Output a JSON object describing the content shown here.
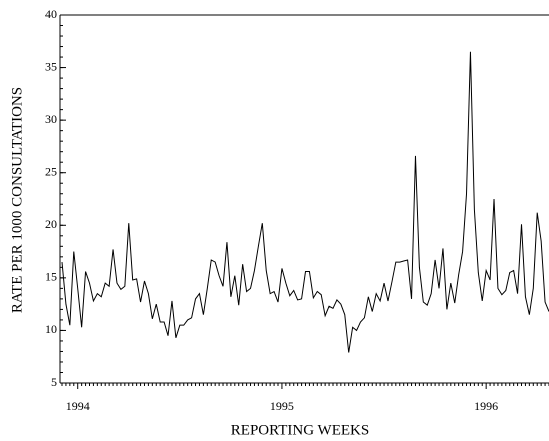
{
  "chart_data": {
    "type": "line",
    "xlabel": "REPORTING WEEKS",
    "ylabel": "RATE PER 1000 CONSULTATIONS",
    "categories": [
      null,
      null,
      null,
      null,
      "1994",
      null,
      null,
      null,
      null,
      null,
      null,
      null,
      null,
      null,
      null,
      null,
      null,
      null,
      null,
      null,
      null,
      null,
      null,
      null,
      null,
      null,
      null,
      null,
      null,
      null,
      null,
      null,
      null,
      null,
      null,
      null,
      null,
      null,
      null,
      null,
      null,
      null,
      null,
      null,
      null,
      null,
      null,
      null,
      null,
      null,
      null,
      null,
      null,
      null,
      null,
      null,
      "1995",
      null,
      null,
      null,
      null,
      null,
      null,
      null,
      null,
      null,
      null,
      null,
      null,
      null,
      null,
      null,
      null,
      null,
      null,
      null,
      null,
      null,
      null,
      null,
      null,
      null,
      null,
      null,
      null,
      null,
      null,
      null,
      null,
      null,
      null,
      null,
      null,
      null,
      null,
      null,
      null,
      null,
      null,
      null,
      null,
      null,
      null,
      null,
      null,
      null,
      null,
      null,
      "1996",
      null,
      null,
      null,
      null,
      null,
      null,
      null,
      null,
      null,
      null,
      null,
      null,
      null,
      null,
      null,
      null
    ],
    "series": [
      {
        "color": "#000000",
        "values": [
          16.5,
          12.5,
          10.5,
          17.5,
          14,
          10.3,
          15.6,
          14.5,
          12.8,
          13.5,
          13.2,
          14.5,
          14.2,
          17.7,
          14.5,
          13.9,
          14.2,
          20.2,
          14.8,
          14.9,
          12.7,
          14.7,
          13.5,
          11.1,
          12.5,
          10.8,
          10.8,
          9.5,
          12.8,
          9.3,
          10.5,
          10.5,
          11,
          11.2,
          13,
          13.5,
          11.5,
          14,
          16.7,
          16.5,
          15.2,
          14.2,
          18.4,
          13.2,
          15.2,
          12.4,
          16.3,
          13.7,
          14,
          15.7,
          18,
          20.2,
          15.7,
          13.5,
          13.7,
          12.7,
          15.9,
          14.5,
          13.3,
          13.8,
          12.9,
          13,
          15.6,
          15.6,
          13.1,
          13.7,
          13.4,
          11.4,
          12.3,
          12.1,
          12.9,
          12.5,
          11.5,
          7.9,
          10.3,
          10,
          10.8,
          11.2,
          13.2,
          11.8,
          13.5,
          12.8,
          14.5,
          12.8,
          14.6,
          16.5,
          16.5,
          16.6,
          16.7,
          13,
          26.6,
          16,
          12.7,
          12.4,
          13.5,
          16.7,
          14,
          17.8,
          12,
          14.5,
          12.6,
          15.3,
          17.5,
          23,
          36.5,
          21.5,
          15.5,
          12.8,
          15.7,
          14.8,
          22.5,
          14,
          13.4,
          13.8,
          15.5,
          15.7,
          13.5,
          20.1,
          13.2,
          11.5,
          14,
          21.2,
          18.5,
          12.7,
          11.8
        ]
      }
    ],
    "ylim": [
      5,
      40
    ],
    "yticks": [
      5,
      10,
      15,
      20,
      25,
      30,
      35,
      40
    ]
  }
}
